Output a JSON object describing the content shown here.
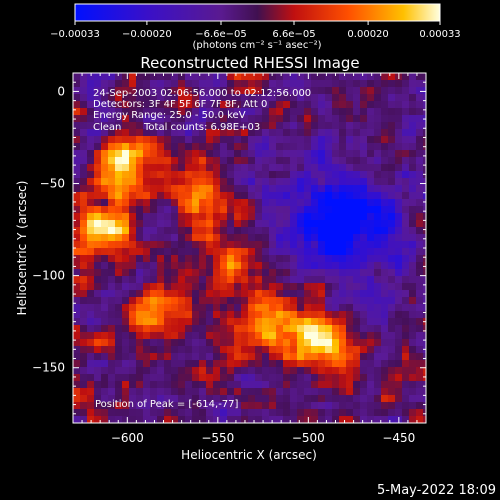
{
  "chart_data": {
    "type": "heatmap",
    "title": "Reconstructed RHESSI Image",
    "xlabel": "Heliocentric X (arcsec)",
    "ylabel": "Heliocentric Y (arcsec)",
    "xlim": [
      -630,
      -435
    ],
    "ylim": [
      -180,
      10
    ],
    "x_ticks": [
      -600,
      -550,
      -500,
      -450
    ],
    "y_ticks": [
      0,
      -50,
      -100,
      -150
    ],
    "x_tick_labels": [
      "−600",
      "−550",
      "−500",
      "−450"
    ],
    "y_tick_labels": [
      "0",
      "−50",
      "−100",
      "−150"
    ],
    "colorbar": {
      "range": [
        -0.00033,
        0.00033
      ],
      "tick_values": [
        -0.00033,
        -0.0002,
        -6.6e-05,
        6.6e-05,
        0.0002,
        0.00033
      ],
      "tick_labels": [
        "−0.00033",
        "−0.00020",
        "−6.6e−05",
        "6.6e−05",
        "0.00020",
        "0.00033"
      ],
      "unit_label": "(photons cm⁻² s⁻¹ asec⁻²)"
    },
    "peak_x": -614,
    "peak_y": -77,
    "hotspots": [
      {
        "x": -600,
        "y": -40,
        "value": 0.00032
      },
      {
        "x": -614,
        "y": -77,
        "value": 0.00033
      },
      {
        "x": -520,
        "y": -125,
        "value": 0.00027
      },
      {
        "x": -493,
        "y": -135,
        "value": 0.0003
      },
      {
        "x": -560,
        "y": -55,
        "value": 0.00018
      },
      {
        "x": -585,
        "y": -120,
        "value": 0.0002
      },
      {
        "x": -540,
        "y": -90,
        "value": 0.00016
      }
    ],
    "cold_region": {
      "x": -485,
      "y": -70,
      "value": -0.0002
    }
  },
  "annotations": {
    "time_range": "24-Sep-2003 02:06:56.000 to 02:12:56.000",
    "detectors": "Detectors: 3F 4F 5F 6F 7F 8F, Att 0",
    "energy_range": "Energy Range: 25.0 - 50.0 keV",
    "clean": "Clean",
    "total_counts": "Total counts: 6.98E+03",
    "peak_position": "Position of Peak = [-614,-77]"
  },
  "footer": {
    "date": "5-May-2022 18:09"
  }
}
